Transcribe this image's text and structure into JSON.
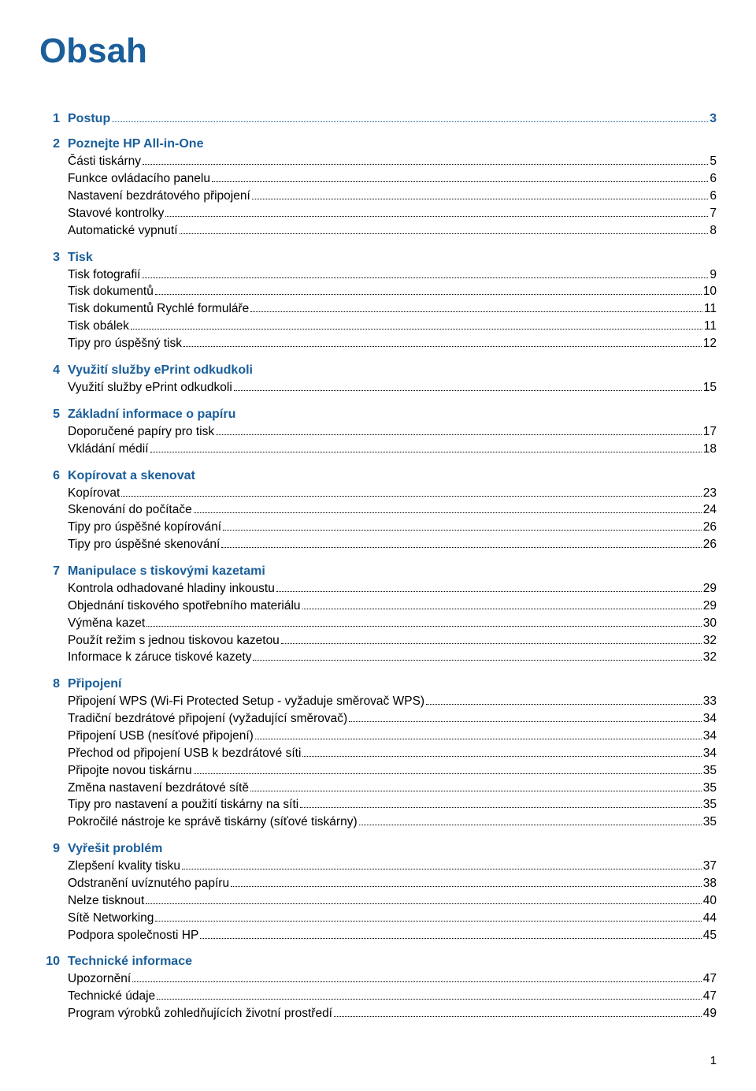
{
  "title": "Obsah",
  "colors": {
    "heading": "#1a5e9a",
    "text": "#000000",
    "background": "#ffffff"
  },
  "sections": [
    {
      "num": "1",
      "title": "Postup",
      "inline_page": "3",
      "entries": []
    },
    {
      "num": "2",
      "title": "Poznejte HP All-in-One",
      "entries": [
        {
          "label": "Části tiskárny",
          "page": "5"
        },
        {
          "label": "Funkce ovládacího panelu",
          "page": "6"
        },
        {
          "label": "Nastavení bezdrátového připojení",
          "page": "6"
        },
        {
          "label": "Stavové kontrolky",
          "page": "7"
        },
        {
          "label": "Automatické vypnutí",
          "page": "8"
        }
      ]
    },
    {
      "num": "3",
      "title": "Tisk",
      "entries": [
        {
          "label": "Tisk fotografií",
          "page": "9"
        },
        {
          "label": "Tisk dokumentů",
          "page": "10"
        },
        {
          "label": "Tisk dokumentů Rychlé formuláře",
          "page": "11"
        },
        {
          "label": "Tisk obálek",
          "page": "11"
        },
        {
          "label": "Tipy pro úspěšný tisk",
          "page": "12"
        }
      ]
    },
    {
      "num": "4",
      "title": "Využití služby ePrint odkudkoli",
      "entries": [
        {
          "label": "Využití služby ePrint odkudkoli",
          "page": "15"
        }
      ]
    },
    {
      "num": "5",
      "title": "Základní informace o papíru",
      "entries": [
        {
          "label": "Doporučené papíry pro tisk",
          "page": "17"
        },
        {
          "label": "Vkládání médií",
          "page": "18"
        }
      ]
    },
    {
      "num": "6",
      "title": "Kopírovat a skenovat",
      "entries": [
        {
          "label": "Kopírovat",
          "page": "23"
        },
        {
          "label": "Skenování do počítače",
          "page": "24"
        },
        {
          "label": "Tipy pro úspěšné kopírování",
          "page": "26"
        },
        {
          "label": "Tipy pro úspěšné skenování",
          "page": "26"
        }
      ]
    },
    {
      "num": "7",
      "title": "Manipulace s tiskovými kazetami",
      "entries": [
        {
          "label": "Kontrola odhadované hladiny inkoustu",
          "page": "29"
        },
        {
          "label": "Objednání tiskového spotřebního materiálu",
          "page": "29"
        },
        {
          "label": "Výměna kazet",
          "page": "30"
        },
        {
          "label": "Použít režim s jednou tiskovou kazetou",
          "page": "32"
        },
        {
          "label": "Informace k záruce tiskové kazety",
          "page": "32"
        }
      ]
    },
    {
      "num": "8",
      "title": "Připojení",
      "entries": [
        {
          "label": "Připojení WPS (Wi-Fi Protected Setup - vyžaduje směrovač WPS)",
          "page": "33"
        },
        {
          "label": "Tradiční bezdrátové připojení (vyžadující směrovač)",
          "page": "34"
        },
        {
          "label": "Připojení USB (nesíťové připojení)",
          "page": "34"
        },
        {
          "label": "Přechod od připojení USB k bezdrátové síti",
          "page": "34"
        },
        {
          "label": "Připojte novou tiskárnu",
          "page": "35"
        },
        {
          "label": "Změna nastavení bezdrátové sítě",
          "page": "35"
        },
        {
          "label": "Tipy pro nastavení a použití tiskárny na síti",
          "page": "35"
        },
        {
          "label": "Pokročilé nástroje ke správě tiskárny (síťové tiskárny)",
          "page": "35"
        }
      ]
    },
    {
      "num": "9",
      "title": "Vyřešit problém",
      "entries": [
        {
          "label": "Zlepšení kvality tisku",
          "page": "37"
        },
        {
          "label": "Odstranění uvíznutého papíru",
          "page": "38"
        },
        {
          "label": "Nelze tisknout",
          "page": "40"
        },
        {
          "label": "Sítě Networking",
          "page": "44"
        },
        {
          "label": "Podpora společnosti HP",
          "page": "45"
        }
      ]
    },
    {
      "num": "10",
      "title": "Technické informace",
      "entries": [
        {
          "label": "Upozornění",
          "page": "47"
        },
        {
          "label": "Technické údaje",
          "page": "47"
        },
        {
          "label": "Program výrobků zohledňujících životní prostředí",
          "page": "49"
        }
      ]
    }
  ],
  "page_number": "1"
}
